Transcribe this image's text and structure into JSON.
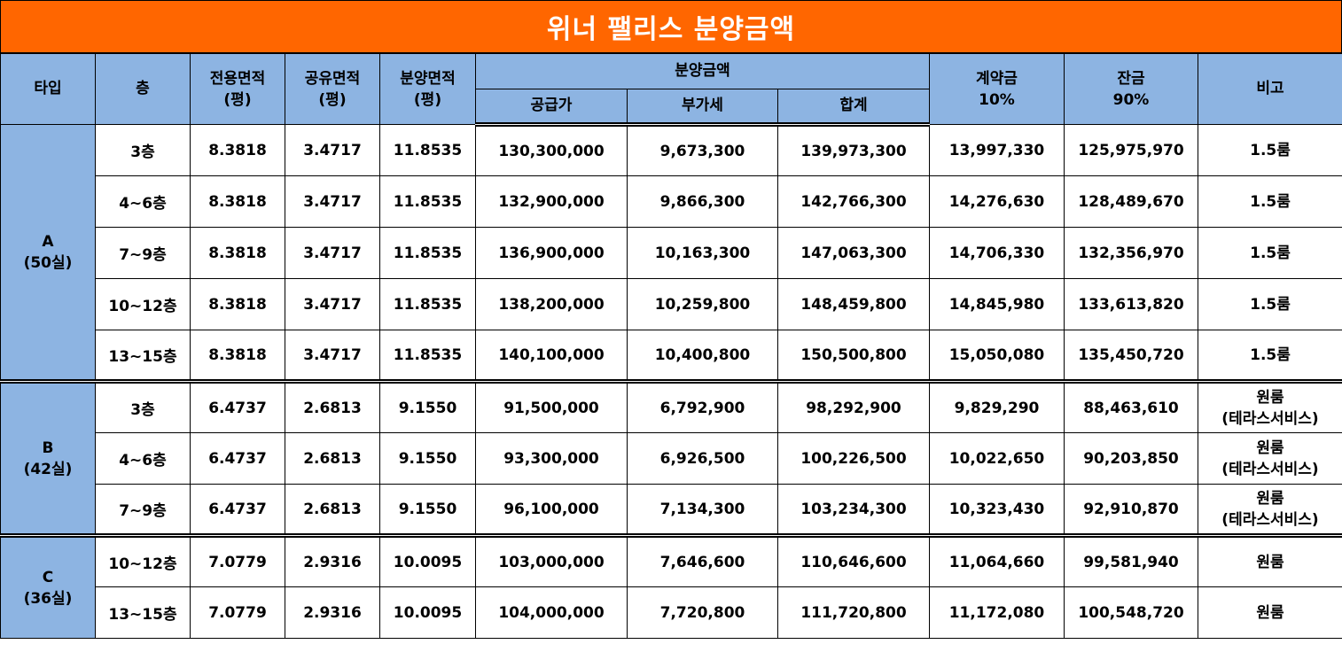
{
  "title": "위너 팰리스 분양금액",
  "header": {
    "type": "타입",
    "floor": "층",
    "exclusive_area": [
      "전용면적",
      "(평)"
    ],
    "common_area": [
      "공유면적",
      "(평)"
    ],
    "sale_area": [
      "분양면적",
      "(평)"
    ],
    "sale_price": "분양금액",
    "supply_price": "공급가",
    "vat": "부가세",
    "total": "합계",
    "deposit": [
      "계약금",
      "10%"
    ],
    "balance": [
      "잔금",
      "90%"
    ],
    "note": "비고"
  },
  "groups": [
    {
      "type_label": [
        "A",
        "(50실)"
      ],
      "rows": [
        {
          "floor": "3층",
          "exclusive": "8.3818",
          "common": "3.4717",
          "sale_area": "11.8535",
          "supply": "130,300,000",
          "vat": "9,673,300",
          "total": "139,973,300",
          "deposit": "13,997,330",
          "balance": "125,975,970",
          "note": [
            "1.5룸"
          ]
        },
        {
          "floor": "4~6층",
          "exclusive": "8.3818",
          "common": "3.4717",
          "sale_area": "11.8535",
          "supply": "132,900,000",
          "vat": "9,866,300",
          "total": "142,766,300",
          "deposit": "14,276,630",
          "balance": "128,489,670",
          "note": [
            "1.5룸"
          ]
        },
        {
          "floor": "7~9층",
          "exclusive": "8.3818",
          "common": "3.4717",
          "sale_area": "11.8535",
          "supply": "136,900,000",
          "vat": "10,163,300",
          "total": "147,063,300",
          "deposit": "14,706,330",
          "balance": "132,356,970",
          "note": [
            "1.5룸"
          ]
        },
        {
          "floor": "10~12층",
          "exclusive": "8.3818",
          "common": "3.4717",
          "sale_area": "11.8535",
          "supply": "138,200,000",
          "vat": "10,259,800",
          "total": "148,459,800",
          "deposit": "14,845,980",
          "balance": "133,613,820",
          "note": [
            "1.5룸"
          ]
        },
        {
          "floor": "13~15층",
          "exclusive": "8.3818",
          "common": "3.4717",
          "sale_area": "11.8535",
          "supply": "140,100,000",
          "vat": "10,400,800",
          "total": "150,500,800",
          "deposit": "15,050,080",
          "balance": "135,450,720",
          "note": [
            "1.5룸"
          ]
        }
      ]
    },
    {
      "type_label": [
        "B",
        "(42실)"
      ],
      "rows": [
        {
          "floor": "3층",
          "exclusive": "6.4737",
          "common": "2.6813",
          "sale_area": "9.1550",
          "supply": "91,500,000",
          "vat": "6,792,900",
          "total": "98,292,900",
          "deposit": "9,829,290",
          "balance": "88,463,610",
          "note": [
            "원룸",
            "(테라스서비스)"
          ]
        },
        {
          "floor": "4~6층",
          "exclusive": "6.4737",
          "common": "2.6813",
          "sale_area": "9.1550",
          "supply": "93,300,000",
          "vat": "6,926,500",
          "total": "100,226,500",
          "deposit": "10,022,650",
          "balance": "90,203,850",
          "note": [
            "원룸",
            "(테라스서비스)"
          ]
        },
        {
          "floor": "7~9층",
          "exclusive": "6.4737",
          "common": "2.6813",
          "sale_area": "9.1550",
          "supply": "96,100,000",
          "vat": "7,134,300",
          "total": "103,234,300",
          "deposit": "10,323,430",
          "balance": "92,910,870",
          "note": [
            "원룸",
            "(테라스서비스)"
          ]
        }
      ]
    },
    {
      "type_label": [
        "C",
        "(36실)"
      ],
      "rows": [
        {
          "floor": "10~12층",
          "exclusive": "7.0779",
          "common": "2.9316",
          "sale_area": "10.0095",
          "supply": "103,000,000",
          "vat": "7,646,600",
          "total": "110,646,600",
          "deposit": "11,064,660",
          "balance": "99,581,940",
          "note": [
            "원룸"
          ]
        },
        {
          "floor": "13~15층",
          "exclusive": "7.0779",
          "common": "2.9316",
          "sale_area": "10.0095",
          "supply": "104,000,000",
          "vat": "7,720,800",
          "total": "111,720,800",
          "deposit": "11,172,080",
          "balance": "100,548,720",
          "note": [
            "원룸"
          ]
        }
      ]
    }
  ]
}
